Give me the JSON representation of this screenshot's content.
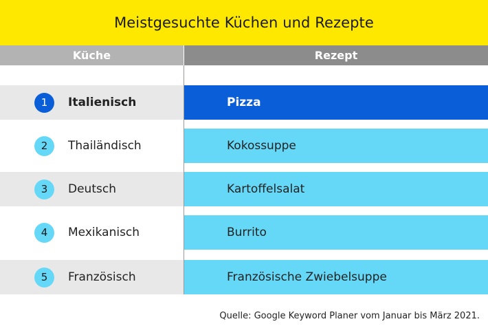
{
  "chart_data": {
    "type": "table",
    "title": "Meistgesuchte Küchen und Rezepte",
    "columns": [
      "Küche",
      "Rezept"
    ],
    "rows": [
      {
        "rank": "1",
        "cuisine": "Italienisch",
        "recipe": "Pizza"
      },
      {
        "rank": "2",
        "cuisine": "Thailändisch",
        "recipe": "Kokossuppe"
      },
      {
        "rank": "3",
        "cuisine": "Deutsch",
        "recipe": "Kartoffelsalat"
      },
      {
        "rank": "4",
        "cuisine": "Mexikanisch",
        "recipe": "Burrito"
      },
      {
        "rank": "5",
        "cuisine": "Französisch",
        "recipe": "Französische Zwiebelsuppe"
      }
    ],
    "source": "Quelle: Google Keyword Planer vom Januar bis März 2021."
  },
  "colors": {
    "title_background": "#ffe800",
    "highlight": "#0a5fd8",
    "row_accent": "#66d8f7",
    "header_left": "#b3b3b3",
    "header_right": "#8c8c8c",
    "row_shade": "#e8e8e8"
  }
}
